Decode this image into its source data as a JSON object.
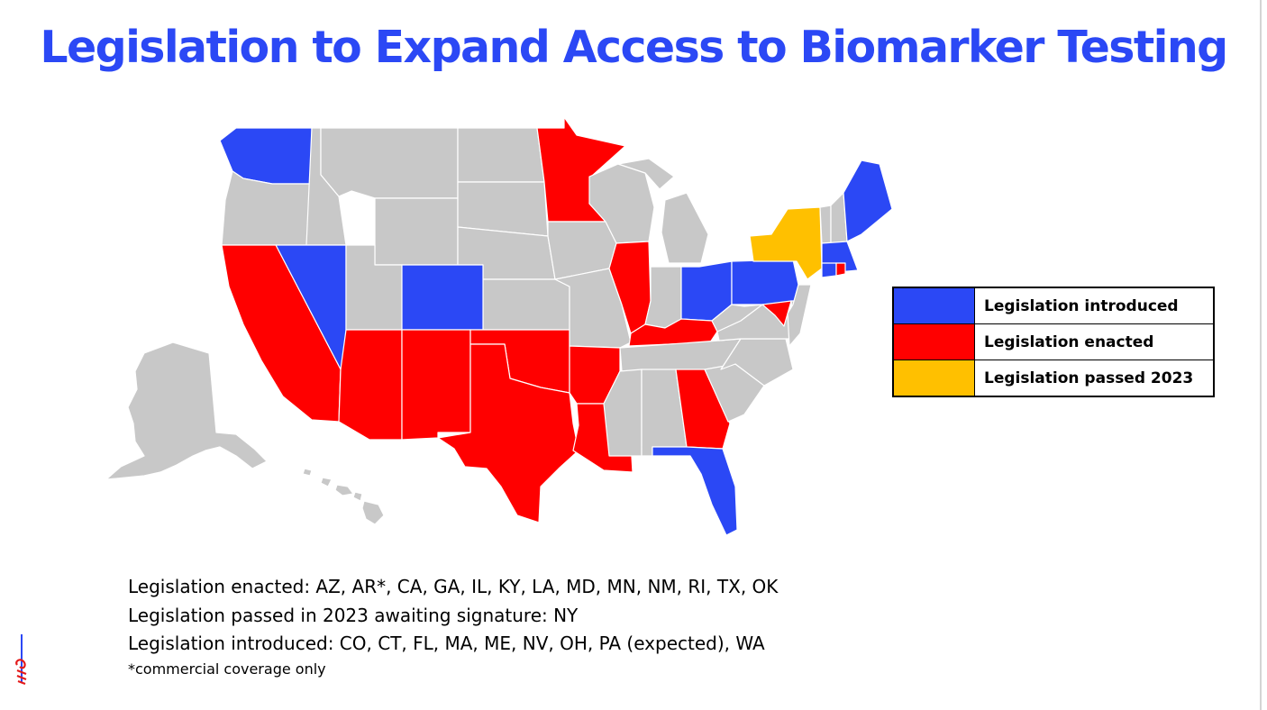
{
  "title": "Legislation to Expand Access to Biomarker Testing",
  "colors": {
    "introduced": "#2b48f5",
    "enacted": "#ff0000",
    "passed_2023": "#ffc000",
    "no_legislation": "#c8c8c8",
    "title": "#2b48f5"
  },
  "legend": [
    {
      "label": "Legislation introduced",
      "status": "introduced",
      "color": "#2b48f5"
    },
    {
      "label": "Legislation enacted",
      "status": "enacted",
      "color": "#ff0000"
    },
    {
      "label": "Legislation passed 2023",
      "status": "passed_2023",
      "color": "#ffc000"
    }
  ],
  "states": {
    "enacted": [
      "AZ",
      "AR",
      "CA",
      "GA",
      "IL",
      "KY",
      "LA",
      "MD",
      "MN",
      "NM",
      "RI",
      "TX",
      "OK"
    ],
    "passed_2023": [
      "NY"
    ],
    "introduced": [
      "CO",
      "CT",
      "FL",
      "MA",
      "ME",
      "NV",
      "OH",
      "PA",
      "WA"
    ]
  },
  "notes": [
    "Legislation enacted: AZ, AR*, CA, GA, IL, KY, LA, MD, MN, NM, RI, TX, OK",
    "Legislation passed in 2023 awaiting signature: NY",
    "Legislation introduced: CO, CT, FL, MA, ME, NV, OH, PA (expected), WA"
  ],
  "footnote": "*commercial coverage only"
}
